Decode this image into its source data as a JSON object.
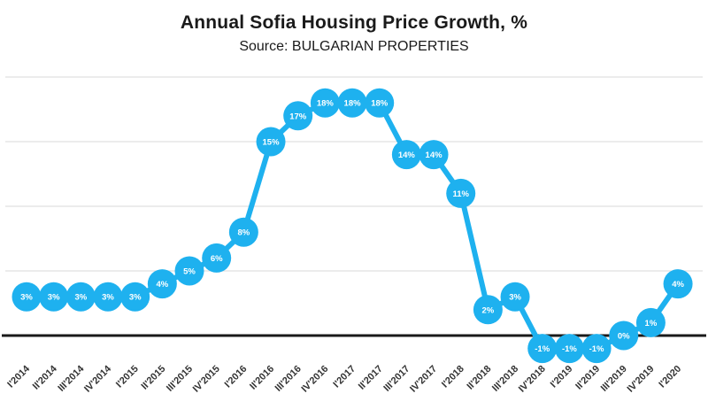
{
  "chart_data": {
    "type": "line",
    "title": "Annual Sofia Housing Price Growth, %",
    "subtitle": "Source: BULGARIAN PROPERTIES",
    "categories": [
      "I'2014",
      "II'2014",
      "III'2014",
      "IV'2014",
      "I'2015",
      "II'2015",
      "III'2015",
      "IV'2015",
      "I'2016",
      "II'2016",
      "III'2016",
      "IV'2016",
      "I'2017",
      "II'2017",
      "III'2017",
      "IV'2017",
      "I'2018",
      "II'2018",
      "III'2018",
      "IV'2018",
      "I'2019",
      "II'2019",
      "III'2019",
      "IV'2019",
      "I'2020"
    ],
    "values": [
      3,
      3,
      3,
      3,
      3,
      4,
      5,
      6,
      8,
      15,
      17,
      18,
      18,
      18,
      14,
      14,
      11,
      2,
      3,
      -1,
      -1,
      -1,
      0,
      1,
      4
    ],
    "data_labels": [
      "3%",
      "3%",
      "3%",
      "3%",
      "3%",
      "4%",
      "5%",
      "6%",
      "8%",
      "15%",
      "17%",
      "18%",
      "18%",
      "18%",
      "14%",
      "14%",
      "11%",
      "2%",
      "3%",
      "-1%",
      "-1%",
      "-1%",
      "0%",
      "1%",
      "4%"
    ],
    "ylim": [
      -3,
      21
    ],
    "gridlines_percent": [
      0,
      5,
      10,
      15,
      20
    ],
    "grid": true,
    "legend": false,
    "xlabel": "",
    "ylabel": "",
    "colors": {
      "line": "#1EB1EF",
      "marker": "#1EB1EF",
      "marker_label": "#ffffff",
      "grid": "#d9d9d9",
      "zero_line": "#1a1a1a",
      "axis_label": "#333333",
      "title": "#1a1a1a"
    }
  }
}
